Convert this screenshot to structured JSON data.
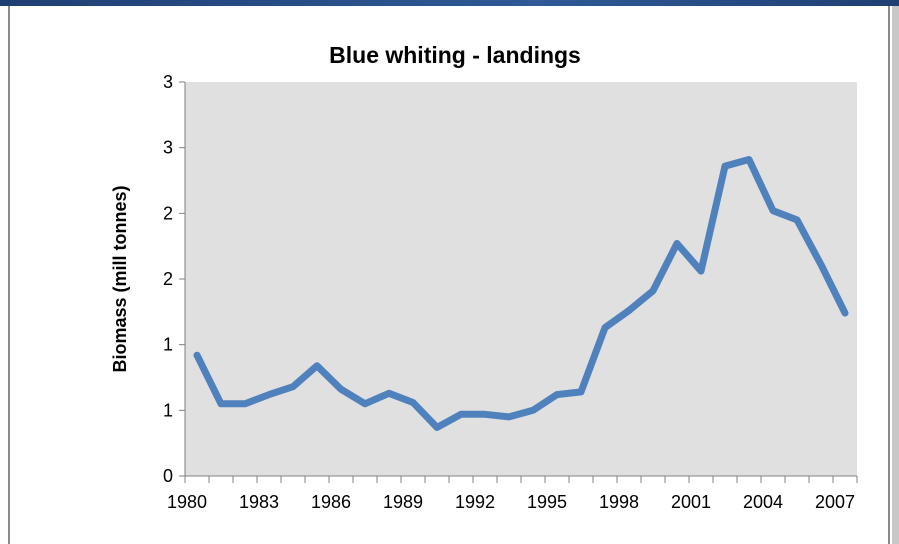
{
  "chart_data": {
    "type": "line",
    "title": "Blue whiting - landings",
    "xlabel": "",
    "ylabel": "Biomass (mill tonnes)",
    "x": [
      1981,
      1982,
      1983,
      1984,
      1985,
      1986,
      1987,
      1988,
      1989,
      1990,
      1991,
      1992,
      1993,
      1994,
      1995,
      1996,
      1997,
      1998,
      1999,
      2000,
      2001,
      2002,
      2003,
      2004,
      2005,
      2006,
      2007,
      2008
    ],
    "series": [
      {
        "values": [
          0.92,
          0.55,
          0.55,
          0.62,
          0.68,
          0.84,
          0.66,
          0.55,
          0.63,
          0.56,
          0.37,
          0.47,
          0.47,
          0.45,
          0.5,
          0.62,
          0.64,
          1.13,
          1.26,
          1.41,
          1.77,
          1.56,
          2.36,
          2.41,
          2.02,
          1.95,
          1.61,
          1.24
        ]
      }
    ],
    "x_tick_labels": [
      "1980",
      "1983",
      "1986",
      "1989",
      "1992",
      "1995",
      "1998",
      "2001",
      "2004",
      "2007"
    ],
    "y_tick_labels": [
      "0",
      "1",
      "1",
      "2",
      "2",
      "3",
      "3"
    ],
    "ylim": [
      0,
      3
    ],
    "grid": false,
    "plot_background": "#e0e0e0",
    "line_color": "#4f81bd"
  }
}
